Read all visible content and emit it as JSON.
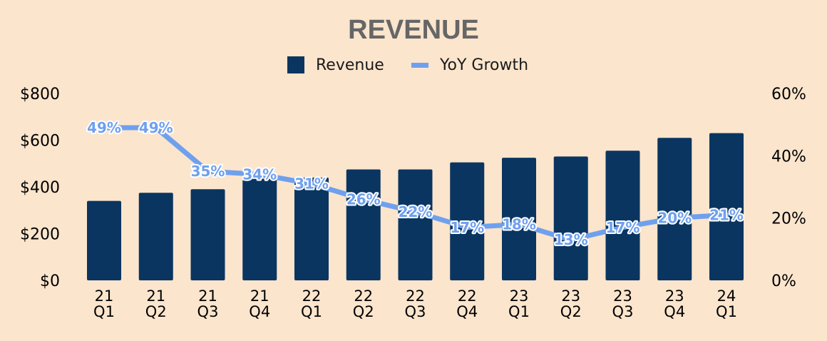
{
  "colors": {
    "background": "#fbe5cd",
    "bar": "#0a3560",
    "line": "#6fa0ee",
    "title": "#666666"
  },
  "chart_data": {
    "type": "bar",
    "title": "REVENUE",
    "categories": [
      [
        "21",
        "Q1"
      ],
      [
        "21",
        "Q2"
      ],
      [
        "21",
        "Q3"
      ],
      [
        "21",
        "Q4"
      ],
      [
        "22",
        "Q1"
      ],
      [
        "22",
        "Q2"
      ],
      [
        "22",
        "Q3"
      ],
      [
        "22",
        "Q4"
      ],
      [
        "23",
        "Q1"
      ],
      [
        "23",
        "Q2"
      ],
      [
        "23",
        "Q3"
      ],
      [
        "23",
        "Q4"
      ],
      [
        "24",
        "Q1"
      ]
    ],
    "series": [
      {
        "name": "Revenue",
        "type": "bar",
        "axis": "left",
        "values": [
          340,
          375,
          390,
          435,
          440,
          475,
          475,
          505,
          525,
          530,
          555,
          610,
          630
        ]
      },
      {
        "name": "YoY Growth",
        "type": "line",
        "axis": "right",
        "values": [
          49,
          49,
          35,
          34,
          31,
          26,
          22,
          17,
          18,
          13,
          17,
          20,
          21
        ],
        "labels": [
          "49%",
          "49%",
          "35%",
          "34%",
          "31%",
          "26%",
          "22%",
          "17%",
          "18%",
          "13%",
          "17%",
          "20%",
          "21%"
        ]
      }
    ],
    "y_left": {
      "min": 0,
      "max": 800,
      "ticks": [
        0,
        200,
        400,
        600,
        800
      ],
      "tick_labels": [
        "$0",
        "$200",
        "$400",
        "$600",
        "$800"
      ]
    },
    "y_right": {
      "min": 0,
      "max": 60,
      "ticks": [
        0,
        20,
        40,
        60
      ],
      "tick_labels": [
        "0%",
        "20%",
        "40%",
        "60%"
      ]
    },
    "legend": {
      "position": "top-center",
      "entries": [
        "Revenue",
        "YoY Growth"
      ]
    },
    "grid": false
  }
}
